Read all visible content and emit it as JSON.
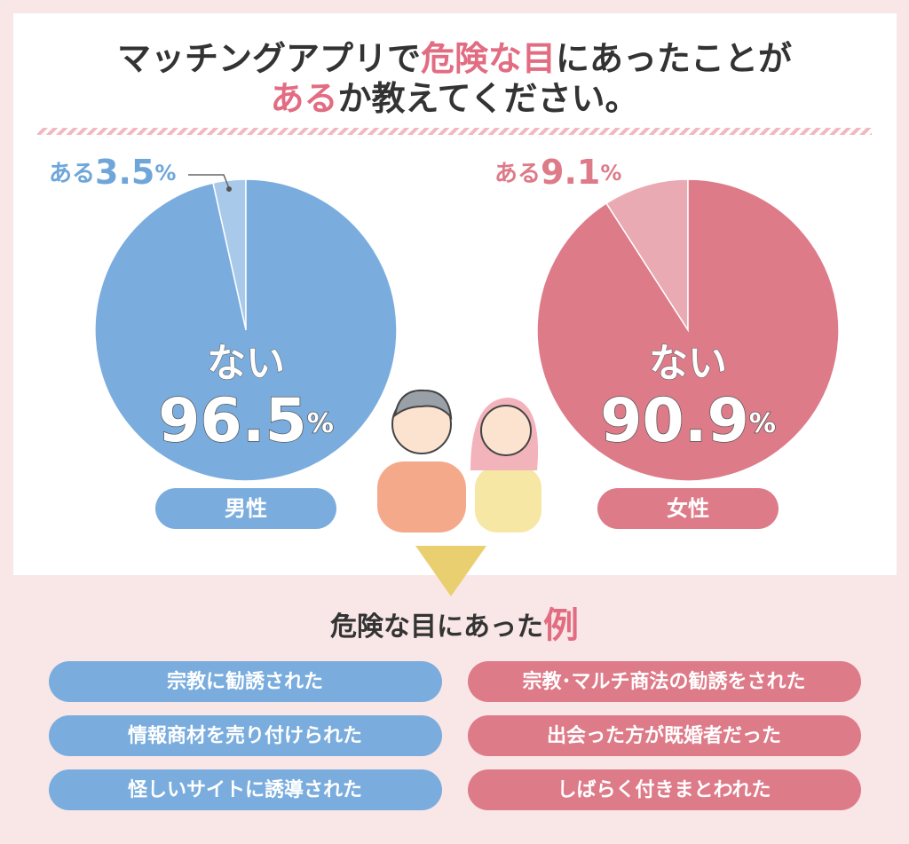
{
  "title_parts": [
    "マッチングアプリで",
    "危険な目",
    "にあったことが",
    "ある",
    "か教えてください。"
  ],
  "chart_data": [
    {
      "type": "pie",
      "label": "男性",
      "categories": [
        "ある",
        "ない"
      ],
      "values": [
        3.5,
        96.5
      ],
      "colors": [
        "#a9c9ea",
        "#7aaddd"
      ],
      "unit": "%"
    },
    {
      "type": "pie",
      "label": "女性",
      "categories": [
        "ある",
        "ない"
      ],
      "values": [
        9.1,
        90.9
      ],
      "colors": [
        "#e9aab3",
        "#de7b89"
      ],
      "unit": "%"
    }
  ],
  "examples": {
    "title_parts": [
      "危険な目にあった",
      "例"
    ],
    "male": [
      "宗教に勧誘された",
      "情報商材を売り付けられた",
      "怪しいサイトに誘導された"
    ],
    "female": [
      "宗教･マルチ商法の勧誘をされた",
      "出会った方が既婚者だった",
      "しばらく付きまとわれた"
    ]
  }
}
